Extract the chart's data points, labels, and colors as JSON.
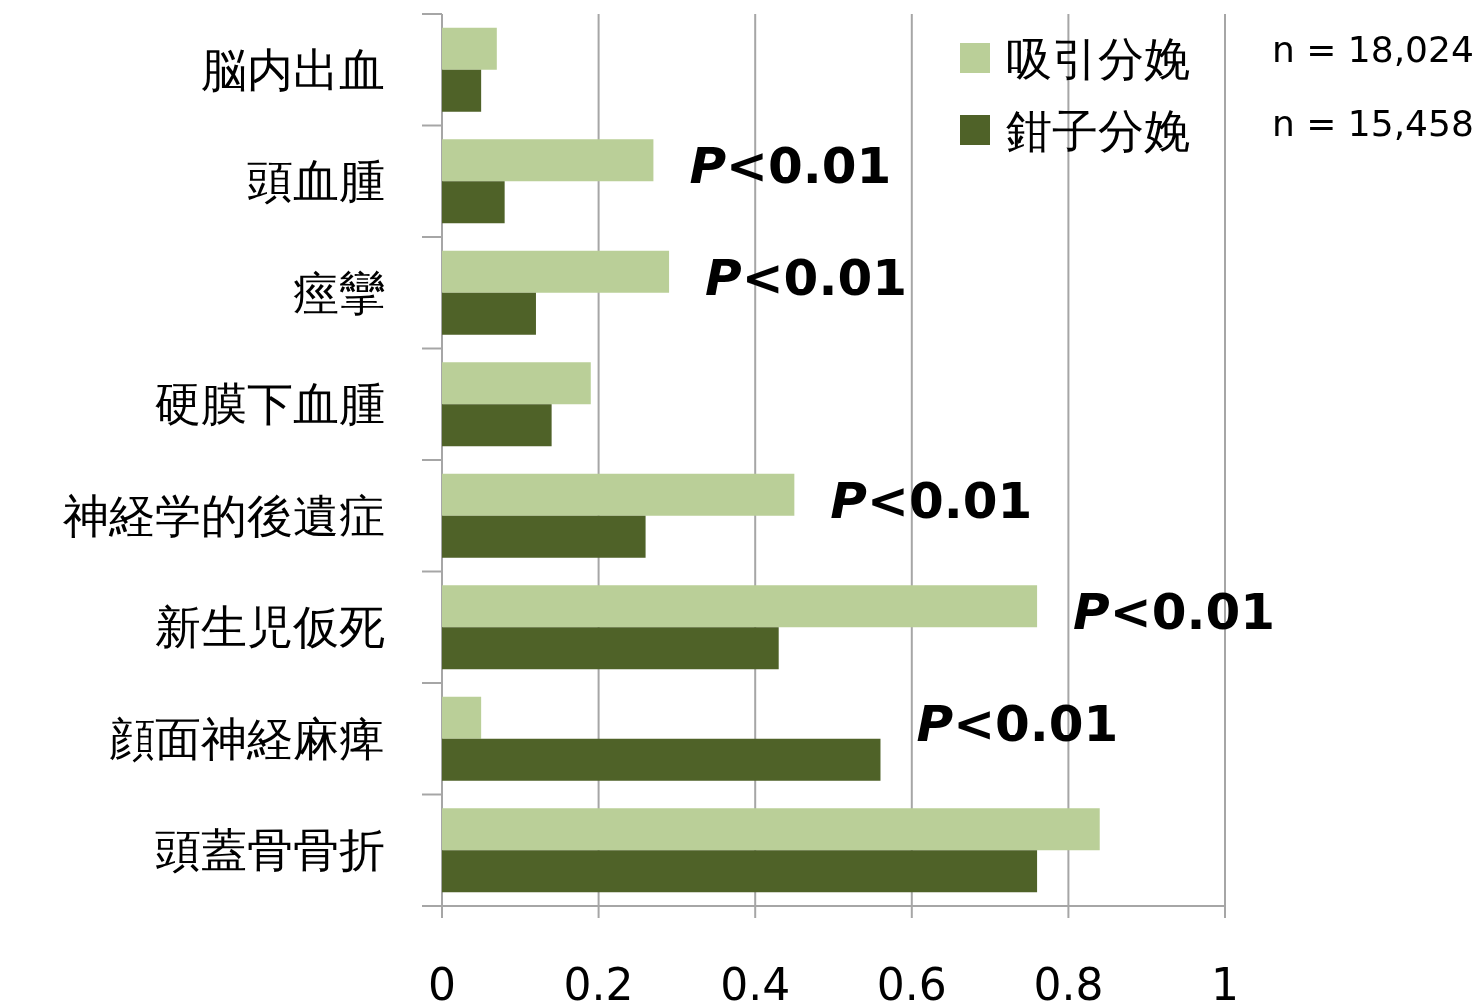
{
  "chart_data": {
    "type": "bar",
    "orientation": "horizontal",
    "categories": [
      "脳内出血",
      "頭血腫",
      "痙攣",
      "硬膜下血腫",
      "神経学的後遺症",
      "新生児仮死",
      "顔面神経麻痺",
      "頭蓋骨骨折"
    ],
    "series": [
      {
        "name": "吸引分娩",
        "color": "#bacf98",
        "values": [
          0.07,
          0.27,
          0.29,
          0.19,
          0.45,
          0.76,
          0.05,
          0.84
        ]
      },
      {
        "name": "鉗子分娩",
        "color": "#4f6228",
        "values": [
          0.05,
          0.08,
          0.12,
          0.14,
          0.26,
          0.43,
          0.56,
          0.76
        ]
      }
    ],
    "xlim": [
      0,
      1
    ],
    "xticks": [
      0,
      0.2,
      0.4,
      0.6,
      0.8,
      1
    ],
    "grid": "x",
    "legend": "top right",
    "annotations": [
      {
        "text": "P<0.01",
        "x": 0.27,
        "y": "頭血腫"
      },
      {
        "text": "P<0.01",
        "x": 0.29,
        "y": "痙攣"
      },
      {
        "text": "P<0.01",
        "x": 0.45,
        "y": "神経学的後遺症"
      },
      {
        "text": "P<0.01",
        "x": 0.76,
        "y": "新生児仮死"
      },
      {
        "text": "P<0.01",
        "x": 0.56,
        "y": "顔面神経麻痺"
      },
      "n = 18,024",
      "n = 15,458"
    ]
  }
}
